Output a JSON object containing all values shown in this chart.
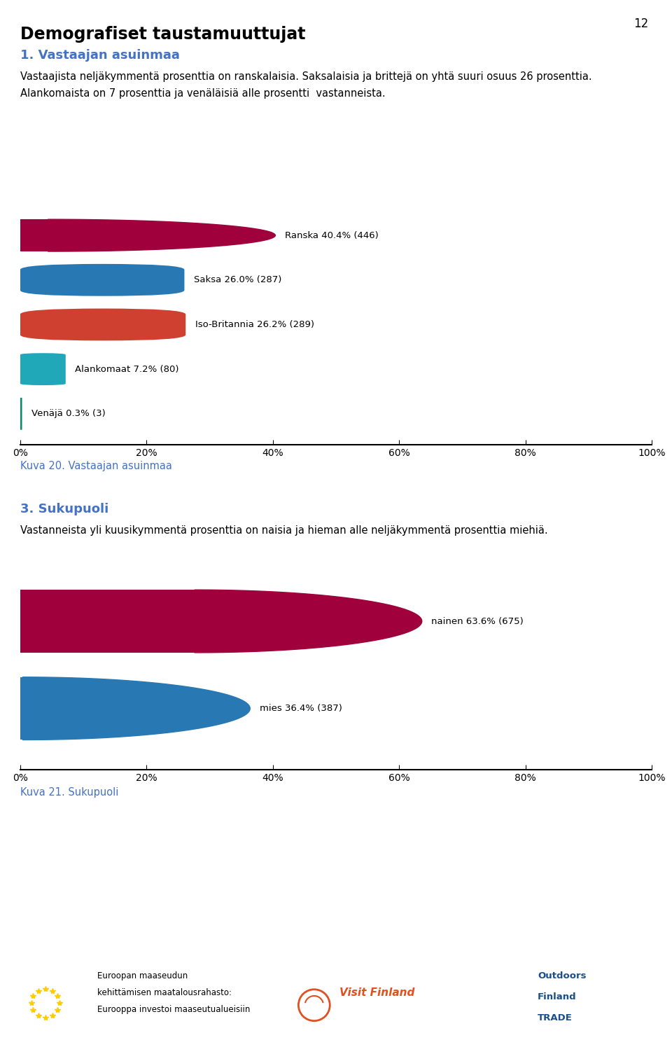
{
  "page_number": "12",
  "main_title": "Demografiset taustamuuttujat",
  "section1_title": "1. Vastaajan asuinmaa",
  "section1_text1": "Vastaajista neljäkymmentä prosenttia on ranskalaisia. Saksalaisia ja brittejä on yhtä suuri osuus 26 prosenttia.",
  "section1_text2": "Alankomaista on 7 prosenttia ja venäläisiä alle prosentti  vastanneista.",
  "chart1_categories": [
    "Ranska",
    "Saksa",
    "Iso-Britannia",
    "Alankomaat",
    "Venäjä"
  ],
  "chart1_values": [
    40.4,
    26.0,
    26.2,
    7.2,
    0.3
  ],
  "chart1_labels": [
    "Ranska 40.4% (446)",
    "Saksa 26.0% (287)",
    "Iso-Britannia 26.2% (289)",
    "Alankomaat 7.2% (80)",
    "Venäjä 0.3% (3)"
  ],
  "chart1_colors": [
    "#a0003c",
    "#2878b4",
    "#d04030",
    "#20a8b8",
    "#009060"
  ],
  "chart1_caption": "Kuva 20. Vastaajan asuinmaa",
  "section2_title": "3. Sukupuoli",
  "section2_text": "Vastanneista yli kuusikymmentä prosenttia on naisia ja hieman alle neljäkymmentä prosenttia miehiä.",
  "chart2_categories": [
    "nainen",
    "mies"
  ],
  "chart2_values": [
    63.6,
    36.4
  ],
  "chart2_labels": [
    "nainen 63.6% (675)",
    "mies 36.4% (387)"
  ],
  "chart2_colors": [
    "#a0003c",
    "#2878b4"
  ],
  "chart2_caption": "Kuva 21. Sukupuoli",
  "caption_color": "#4472c4",
  "axis_color": "#000000",
  "background_color": "#ffffff",
  "text_color": "#000000",
  "bar_height": 0.72,
  "xlim": [
    0,
    1.0
  ],
  "footer_text1": "Euroopan maaseudun",
  "footer_text2": "kehittämisen maatalousrahasto:",
  "footer_text3": "Eurooppa investoi maaseutualueisiin",
  "footer_vf": "Visit Finland",
  "footer_out1": "Outdoors",
  "footer_out2": "Finland",
  "footer_out3": "TRADE"
}
